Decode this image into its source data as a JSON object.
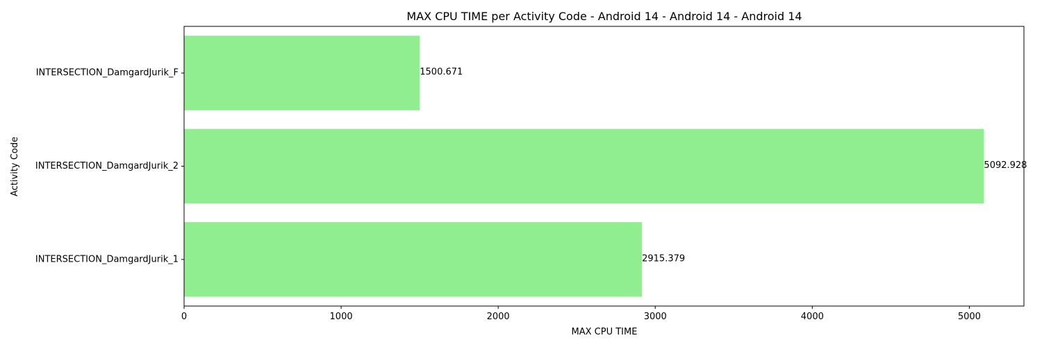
{
  "chart_data": {
    "type": "bar",
    "orientation": "horizontal",
    "title": "MAX CPU TIME per Activity Code - Android 14 - Android 14 - Android 14",
    "xlabel": "MAX CPU TIME",
    "ylabel": "Activity Code",
    "categories": [
      "INTERSECTION_DamgardJurik_1",
      "INTERSECTION_DamgardJurik_2",
      "INTERSECTION_DamgardJurik_F"
    ],
    "values": [
      2915.379,
      5092.928,
      1500.671
    ],
    "data_labels": [
      "2915.379",
      "5092.928",
      "1500.671"
    ],
    "xlim": [
      0,
      5347.6
    ],
    "xticks": [
      0,
      1000,
      2000,
      3000,
      4000,
      5000
    ],
    "bar_color": "#90ee90",
    "grid": false,
    "legend": "none"
  }
}
